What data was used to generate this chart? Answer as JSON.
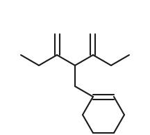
{
  "background": "#ffffff",
  "line_color": "#1a1a1a",
  "line_width": 1.5,
  "figsize": [
    2.16,
    1.94
  ],
  "dpi": 100,
  "xlim": [
    0,
    216
  ],
  "ylim": [
    0,
    194
  ]
}
